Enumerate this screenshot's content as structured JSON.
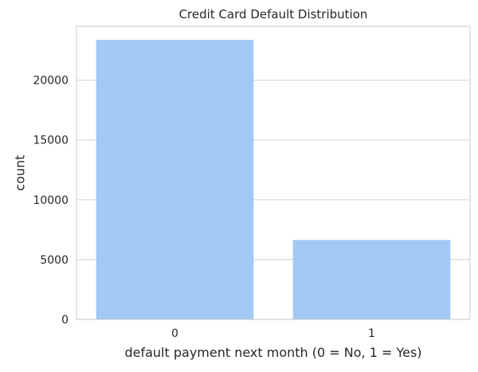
{
  "chart_data": {
    "type": "bar",
    "title": "Credit Card Default Distribution",
    "xlabel": "default payment next month (0 = No, 1 = Yes)",
    "ylabel": "count",
    "categories": [
      "0",
      "1"
    ],
    "values": [
      23364,
      6636
    ],
    "ylim": [
      0,
      24500
    ],
    "yticks": [
      0,
      5000,
      10000,
      15000,
      20000
    ],
    "ytick_labels": [
      "0",
      "5000",
      "10000",
      "15000",
      "20000"
    ],
    "grid": true,
    "legend": "none",
    "colors": {
      "bar": "#a1c9f4",
      "grid": "#d9d9d9",
      "axes": "#cccccc",
      "text": "#262626"
    }
  }
}
